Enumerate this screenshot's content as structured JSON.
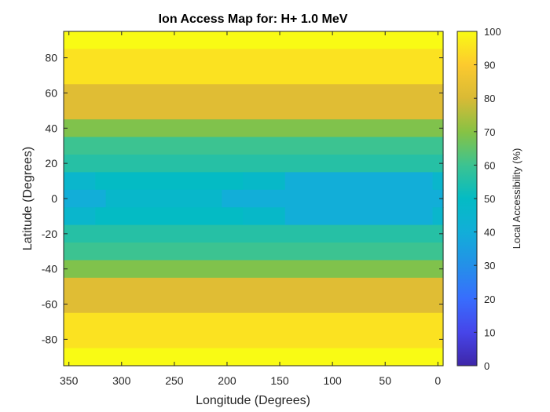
{
  "chart_data": {
    "type": "heatmap",
    "title": "Ion Access Map for: H+ 1.0 MeV",
    "xlabel": "Longitude (Degrees)",
    "ylabel": "Latitude (Degrees)",
    "colorbar_label": "Local Accessibility (%)",
    "x_reversed": true,
    "xlim": [
      -5,
      355
    ],
    "ylim": [
      -95,
      95
    ],
    "clim": [
      0,
      100
    ],
    "colormap": "parula",
    "x_ticks": [
      350,
      300,
      250,
      200,
      150,
      100,
      50,
      0
    ],
    "y_ticks": [
      80,
      60,
      40,
      20,
      0,
      -20,
      -40,
      -60,
      -80
    ],
    "colorbar_ticks": [
      0,
      10,
      20,
      30,
      40,
      50,
      60,
      70,
      80,
      90,
      100
    ],
    "y_edges": [
      95,
      85,
      65,
      45,
      35,
      25,
      15,
      5,
      -5,
      -15,
      -25,
      -35,
      -45,
      -65,
      -85,
      -95
    ],
    "rows": [
      {
        "lat": 90,
        "segments": [
          {
            "lon_max": 355,
            "lon_min": -5,
            "value": 100
          }
        ]
      },
      {
        "lat": 75,
        "segments": [
          {
            "lon_max": 355,
            "lon_min": -5,
            "value": 95
          }
        ]
      },
      {
        "lat": 55,
        "segments": [
          {
            "lon_max": 355,
            "lon_min": -5,
            "value": 82
          }
        ]
      },
      {
        "lat": 40,
        "segments": [
          {
            "lon_max": 355,
            "lon_min": -5,
            "value": 69
          }
        ]
      },
      {
        "lat": 30,
        "segments": [
          {
            "lon_max": 355,
            "lon_min": -5,
            "value": 60
          }
        ]
      },
      {
        "lat": 20,
        "segments": [
          {
            "lon_max": 355,
            "lon_min": -5,
            "value": 56
          }
        ]
      },
      {
        "lat": 10,
        "segments": [
          {
            "lon_max": 355,
            "lon_min": 325,
            "value": 46
          },
          {
            "lon_max": 325,
            "lon_min": 185,
            "value": 50
          },
          {
            "lon_max": 185,
            "lon_min": 145,
            "value": 48
          },
          {
            "lon_max": 145,
            "lon_min": 5,
            "value": 40
          },
          {
            "lon_max": 5,
            "lon_min": -5,
            "value": 46
          }
        ]
      },
      {
        "lat": 0,
        "segments": [
          {
            "lon_max": 355,
            "lon_min": 315,
            "value": 40
          },
          {
            "lon_max": 315,
            "lon_min": 205,
            "value": 47
          },
          {
            "lon_max": 205,
            "lon_min": -5,
            "value": 40
          }
        ]
      },
      {
        "lat": -10,
        "segments": [
          {
            "lon_max": 355,
            "lon_min": 325,
            "value": 46
          },
          {
            "lon_max": 325,
            "lon_min": 185,
            "value": 50
          },
          {
            "lon_max": 185,
            "lon_min": 145,
            "value": 48
          },
          {
            "lon_max": 145,
            "lon_min": 5,
            "value": 40
          },
          {
            "lon_max": 5,
            "lon_min": -5,
            "value": 46
          }
        ]
      },
      {
        "lat": -20,
        "segments": [
          {
            "lon_max": 355,
            "lon_min": -5,
            "value": 56
          }
        ]
      },
      {
        "lat": -30,
        "segments": [
          {
            "lon_max": 355,
            "lon_min": -5,
            "value": 60
          }
        ]
      },
      {
        "lat": -40,
        "segments": [
          {
            "lon_max": 355,
            "lon_min": -5,
            "value": 69
          }
        ]
      },
      {
        "lat": -55,
        "segments": [
          {
            "lon_max": 355,
            "lon_min": -5,
            "value": 82
          }
        ]
      },
      {
        "lat": -75,
        "segments": [
          {
            "lon_max": 355,
            "lon_min": -5,
            "value": 95
          }
        ]
      },
      {
        "lat": -90,
        "segments": [
          {
            "lon_max": 355,
            "lon_min": -5,
            "value": 100
          }
        ]
      }
    ]
  }
}
